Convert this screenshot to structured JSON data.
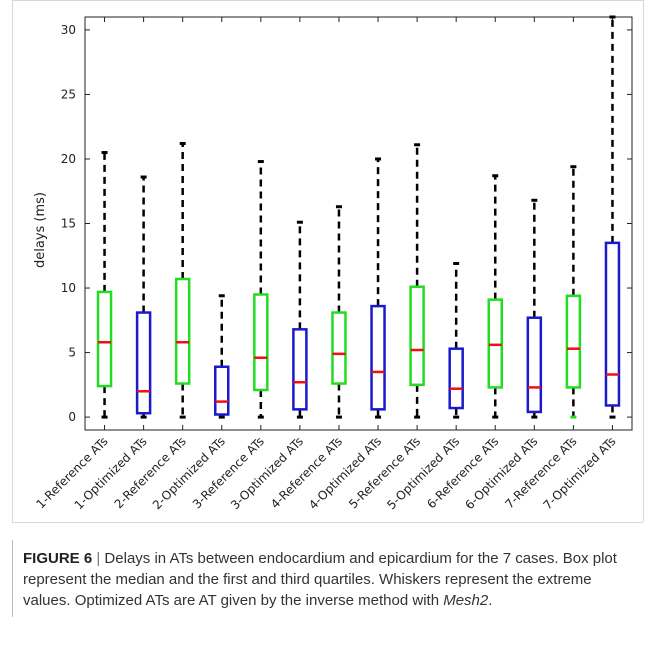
{
  "chart_data": {
    "type": "box",
    "ylabel": "delays (ms)",
    "ylim": [
      -1,
      31
    ],
    "yticks": [
      0,
      5,
      10,
      15,
      20,
      25,
      30
    ],
    "grid": false,
    "categories": [
      "1-Reference ATs",
      "1-Optimized ATs",
      "2-Reference ATs",
      "2-Optimized ATs",
      "3-Reference ATs",
      "3-Optimized ATs",
      "4-Reference ATs",
      "4-Optimized ATs",
      "5-Reference ATs",
      "5-Optimized ATs",
      "6-Reference ATs",
      "6-Optimized ATs",
      "7-Reference ATs",
      "7-Optimized ATs"
    ],
    "boxes": [
      {
        "min": 0.0,
        "q1": 2.4,
        "median": 5.8,
        "q3": 9.7,
        "max": 20.5
      },
      {
        "min": 0.0,
        "q1": 0.3,
        "median": 2.0,
        "q3": 8.1,
        "max": 18.6
      },
      {
        "min": 0.0,
        "q1": 2.6,
        "median": 5.8,
        "q3": 10.7,
        "max": 21.2
      },
      {
        "min": 0.0,
        "q1": 0.2,
        "median": 1.2,
        "q3": 3.9,
        "max": 9.4
      },
      {
        "min": 0.0,
        "q1": 2.1,
        "median": 4.6,
        "q3": 9.5,
        "max": 19.8
      },
      {
        "min": 0.0,
        "q1": 0.6,
        "median": 2.7,
        "q3": 6.8,
        "max": 15.1
      },
      {
        "min": 0.0,
        "q1": 2.6,
        "median": 4.9,
        "q3": 8.1,
        "max": 16.3
      },
      {
        "min": 0.0,
        "q1": 0.6,
        "median": 3.5,
        "q3": 8.6,
        "max": 20.0
      },
      {
        "min": 0.0,
        "q1": 2.5,
        "median": 5.2,
        "q3": 10.1,
        "max": 21.1
      },
      {
        "min": 0.0,
        "q1": 0.7,
        "median": 2.2,
        "q3": 5.3,
        "max": 11.9
      },
      {
        "min": 0.0,
        "q1": 2.3,
        "median": 5.6,
        "q3": 9.1,
        "max": 18.7
      },
      {
        "min": 0.0,
        "q1": 0.4,
        "median": 2.3,
        "q3": 7.7,
        "max": 16.8
      },
      {
        "min": 0.0,
        "q1": 2.3,
        "median": 5.3,
        "q3": 9.4,
        "max": 19.4
      },
      {
        "min": 0.0,
        "q1": 0.9,
        "median": 3.3,
        "q3": 13.5,
        "max": 31.0
      }
    ],
    "colors": {
      "reference_box": "#22dd22",
      "optimized_box": "#1a1acc",
      "median": "#ee1111",
      "whisker": "#000000"
    }
  },
  "caption": {
    "figure_label": "FIGURE 6",
    "separator": "|",
    "text_before": " Delays in ATs between endocardium and epicardium for the 7 cases. Box plot represent the median and the first and third quartiles. Whiskers represent the extreme values. Optimized ATs are AT given by the inverse method with ",
    "mesh": "Mesh2",
    "text_after": "."
  }
}
